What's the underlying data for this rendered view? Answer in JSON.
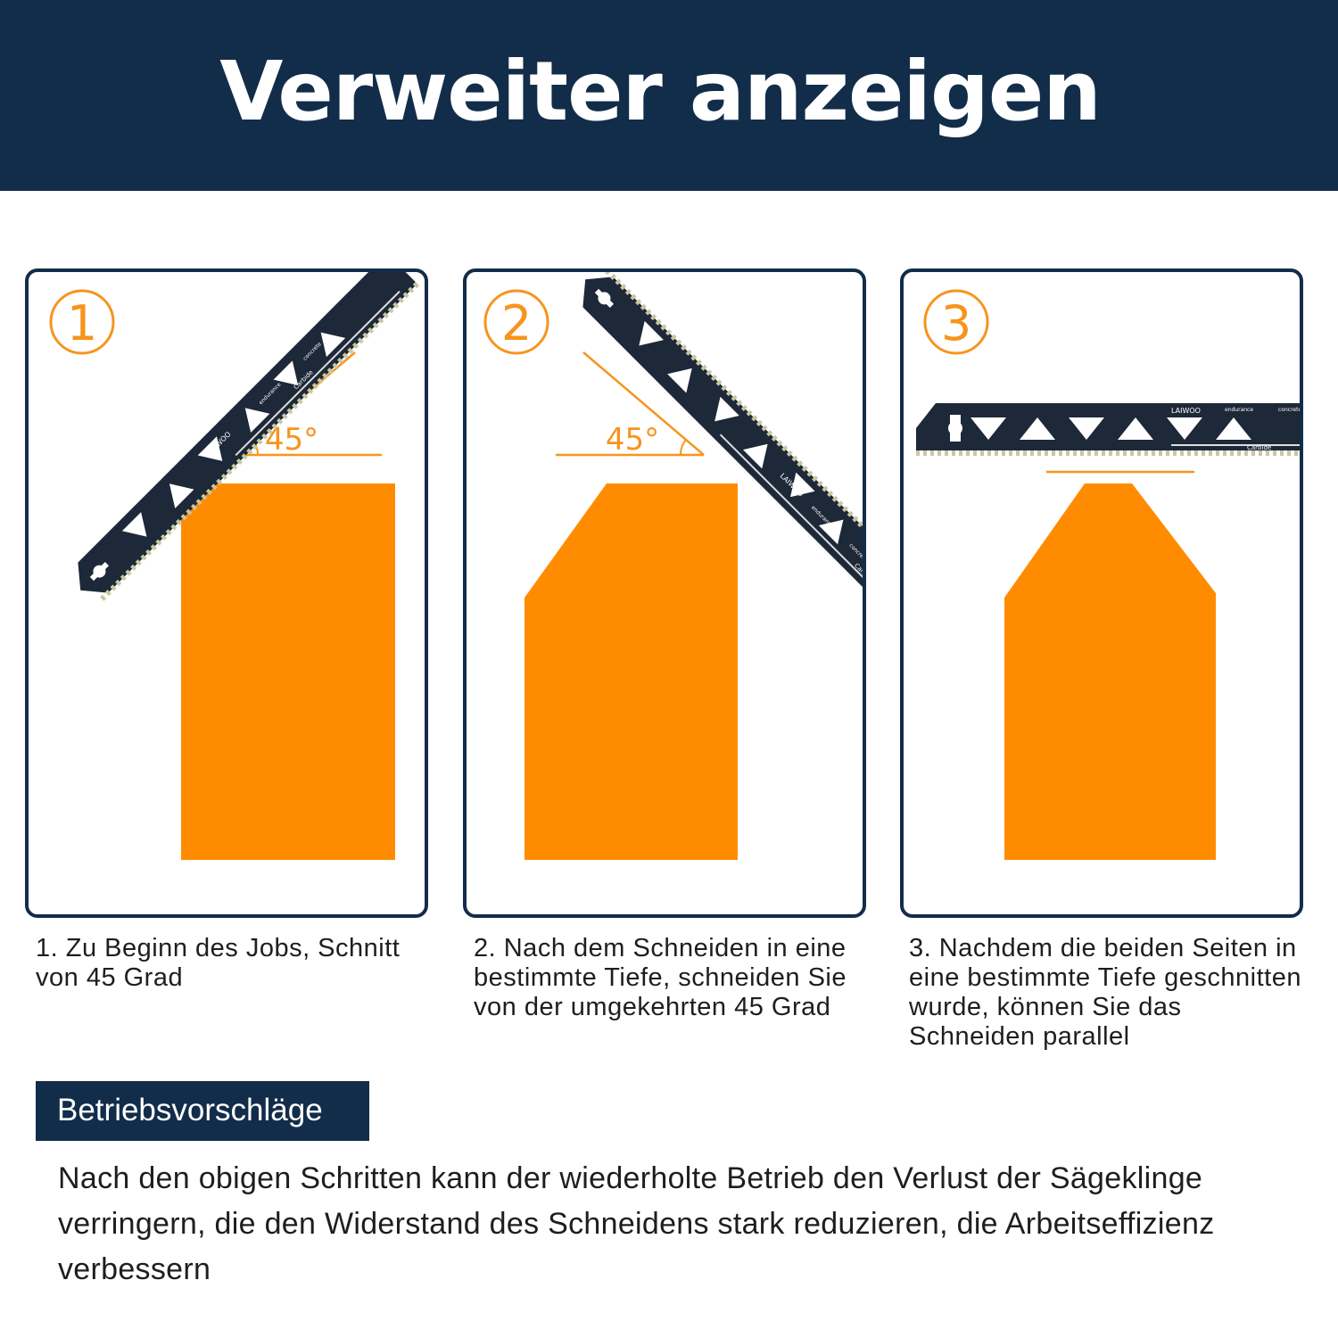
{
  "header": {
    "title": "Verweiter anzeigen"
  },
  "steps": [
    {
      "number": "1",
      "angle_label": "45°",
      "description": "1. Zu Beginn des Jobs, Schnitt von 45 Grad"
    },
    {
      "number": "2",
      "angle_label": "45°",
      "description": "2. Nach dem Schneiden in eine bestimmte Tiefe, schneiden Sie von der umgekehrten 45 Grad"
    },
    {
      "number": "3",
      "angle_label": "",
      "description": "3. Nachdem die beiden Seiten in eine bestimmte Tiefe geschnitten wurde, können Sie das Schneiden parallel"
    }
  ],
  "blade": {
    "brand": "LAIWOO",
    "word1": "endurance",
    "word2": "concrete",
    "word3": "Carbide"
  },
  "suggestions": {
    "title": "Betriebsvorschläge",
    "text": "Nach den obigen Schritten kann der wiederholte Betrieb den Verlust der Sägeklinge verringern, die den Widerstand des Schneidens stark reduzieren, die Arbeitseffizienz verbessern"
  },
  "colors": {
    "navy": "#122d4a",
    "orange": "#ff8c00",
    "blade": "#1d2838"
  }
}
